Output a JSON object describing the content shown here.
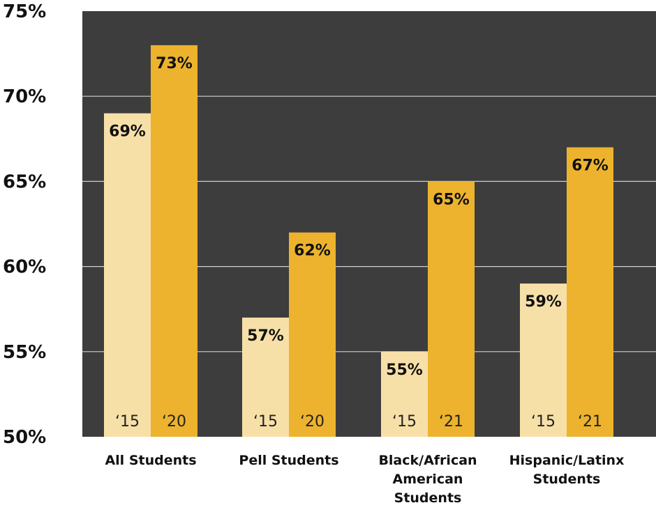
{
  "colors": {
    "plot_background": "#3d3d3d",
    "gridline": "#cfcfcf",
    "bar_light": "#f7e0a8",
    "bar_dark": "#edb32e",
    "text": "#111111"
  },
  "chart_data": {
    "type": "bar",
    "ylim": [
      50,
      75
    ],
    "yticks": [
      50,
      55,
      60,
      65,
      70,
      75
    ],
    "ytick_labels": [
      "50%",
      "55%",
      "60%",
      "65%",
      "70%",
      "75%"
    ],
    "grid": true,
    "categories": [
      {
        "label": [
          "All Students"
        ],
        "bars": [
          {
            "year_label": "‘15",
            "value": 69,
            "value_label": "69%",
            "color": "light"
          },
          {
            "year_label": "‘20",
            "value": 73,
            "value_label": "73%",
            "color": "dark"
          }
        ]
      },
      {
        "label": [
          "Pell Students"
        ],
        "bars": [
          {
            "year_label": "‘15",
            "value": 57,
            "value_label": "57%",
            "color": "light"
          },
          {
            "year_label": "‘20",
            "value": 62,
            "value_label": "62%",
            "color": "dark"
          }
        ]
      },
      {
        "label": [
          "Black/African",
          "American",
          "Students"
        ],
        "bars": [
          {
            "year_label": "‘15",
            "value": 55,
            "value_label": "55%",
            "color": "light"
          },
          {
            "year_label": "‘21",
            "value": 65,
            "value_label": "65%",
            "color": "dark"
          }
        ]
      },
      {
        "label": [
          "Hispanic/Latinx",
          "Students"
        ],
        "bars": [
          {
            "year_label": "‘15",
            "value": 59,
            "value_label": "59%",
            "color": "light"
          },
          {
            "year_label": "‘21",
            "value": 67,
            "value_label": "67%",
            "color": "dark"
          }
        ]
      }
    ]
  }
}
